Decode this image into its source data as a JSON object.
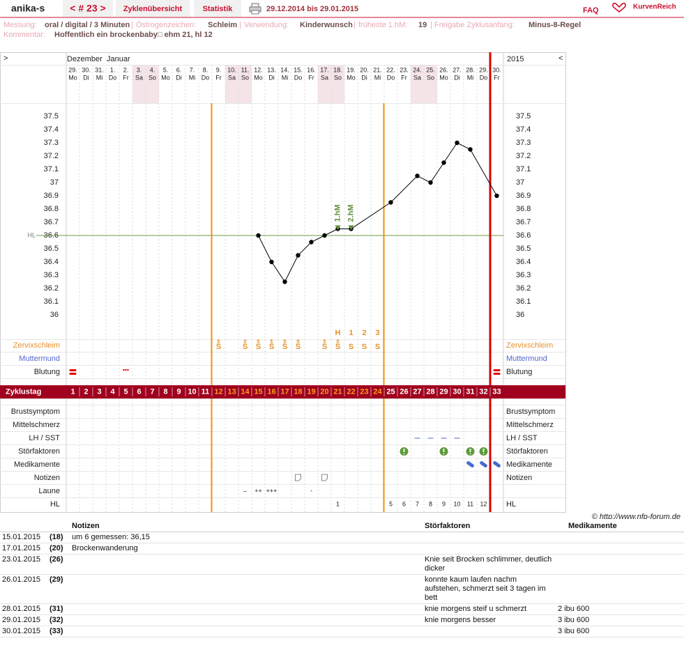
{
  "header": {
    "user": "anika-s",
    "cycle": "< # 23 >",
    "tabs": [
      "Zyklenübersicht",
      "Statistik"
    ],
    "period": "29.12.2014 bis 29.01.2015",
    "faq": "FAQ",
    "logo": "KurvenReich"
  },
  "info": {
    "separator": "|",
    "items": [
      {
        "label": "Messung:",
        "value": "oral / digital / 3 Minuten"
      },
      {
        "label": "Östrogenzeichen:",
        "value": "Schleim"
      },
      {
        "label": "Verwendung:",
        "value": "Kinderwunsch"
      },
      {
        "label": "früheste 1.hM:",
        "value": "19"
      },
      {
        "label": "Freigabe Zyklusanfang:",
        "value": "Minus-8-Regel"
      }
    ],
    "comment_label": "Kommentar:",
    "comment": "Hoffentlich ein brockenbaby□ ehm 21, hl 12"
  },
  "chart_data": {
    "type": "line",
    "nav_left": ">",
    "nav_right": "<",
    "months": [
      "Dezember",
      "Januar"
    ],
    "year": "2015",
    "dates": [
      "29.",
      "30.",
      "31.",
      "1.",
      "2.",
      "3.",
      "4.",
      "5.",
      "6.",
      "7.",
      "8.",
      "9.",
      "10.",
      "11.",
      "12.",
      "13.",
      "14.",
      "15.",
      "16.",
      "17.",
      "18.",
      "19.",
      "20.",
      "21.",
      "22.",
      "23.",
      "24.",
      "25.",
      "26.",
      "27.",
      "28.",
      "29.",
      "30."
    ],
    "weekdays": [
      "Mo",
      "Di",
      "Mi",
      "Do",
      "Fr",
      "Sa",
      "So",
      "Mo",
      "Di",
      "Mi",
      "Do",
      "Fr",
      "Sa",
      "So",
      "Mo",
      "Di",
      "Mi",
      "Do",
      "Fr",
      "Sa",
      "So",
      "Mo",
      "Di",
      "Mi",
      "Do",
      "Fr",
      "Sa",
      "So",
      "Mo",
      "Di",
      "Mi",
      "Do",
      "Fr"
    ],
    "series": [
      {
        "color": "#000000",
        "x": [
          15,
          16,
          17,
          18,
          19,
          20,
          21,
          22,
          25,
          27,
          28,
          29,
          30,
          31,
          33
        ],
        "values": [
          36.6,
          36.4,
          36.25,
          36.45,
          36.55,
          36.6,
          36.65,
          36.65,
          36.85,
          37.05,
          37.0,
          37.15,
          37.3,
          37.25,
          36.9
        ]
      }
    ],
    "xlim": [
      0.5,
      33.5
    ],
    "ylim": [
      35.9,
      37.6
    ],
    "yticks": [
      37.5,
      37.4,
      37.3,
      37.2,
      37.1,
      37,
      36.9,
      36.8,
      36.7,
      36.6,
      36.5,
      36.4,
      36.3,
      36.2,
      36.1,
      36
    ],
    "hl_line": {
      "label": "HL",
      "value": 36.6,
      "color": "#6f9a45"
    },
    "markers": [
      {
        "x": 21,
        "label": "1.hM"
      },
      {
        "x": 22,
        "label": "2.hM"
      }
    ],
    "marker_color": "#5e8e3e"
  },
  "rows": {
    "labels": {
      "zervix": "Zervixschleim",
      "muttermund": "Muttermund",
      "blutung": "Blutung",
      "zyklustag": "Zyklustag",
      "brust": "Brustsymptom",
      "mittel": "Mittelschmerz",
      "lh": "LH / SST",
      "stoer": "Störfaktoren",
      "medi": "Medikamente",
      "notizen": "Notizen",
      "laune": "Laune",
      "hl": "HL"
    },
    "cycle_days": [
      1,
      2,
      3,
      4,
      5,
      6,
      7,
      8,
      9,
      10,
      11,
      12,
      13,
      14,
      15,
      16,
      17,
      18,
      19,
      20,
      21,
      22,
      23,
      24,
      25,
      26,
      27,
      28,
      29,
      30,
      31,
      32,
      33
    ],
    "hm_row": [
      null,
      null,
      null,
      null,
      null,
      null,
      null,
      null,
      null,
      null,
      null,
      null,
      null,
      null,
      null,
      null,
      null,
      null,
      null,
      null,
      "H",
      "1",
      "2",
      "3",
      null,
      null,
      null,
      null,
      null,
      null,
      null,
      null,
      null
    ],
    "zervix_top": [
      null,
      null,
      null,
      null,
      null,
      null,
      null,
      null,
      null,
      null,
      null,
      "±",
      null,
      "±",
      "±",
      "±",
      "±",
      "±",
      null,
      "±",
      "±",
      null,
      null,
      null,
      null,
      null,
      null,
      null,
      null,
      null,
      null,
      null,
      null
    ],
    "zervix": [
      null,
      null,
      null,
      null,
      null,
      null,
      null,
      null,
      null,
      null,
      null,
      "S",
      null,
      "S",
      "S",
      "S",
      "S",
      "S",
      null,
      "S",
      "S",
      "S",
      "S",
      "S",
      null,
      null,
      null,
      null,
      null,
      null,
      null,
      null,
      null
    ],
    "laune": [
      null,
      null,
      null,
      null,
      null,
      null,
      null,
      null,
      null,
      null,
      null,
      null,
      null,
      "–",
      "++",
      "+++",
      null,
      null,
      "-",
      null,
      null,
      null,
      null,
      null,
      null,
      null,
      null,
      null,
      null,
      null,
      null,
      null,
      null
    ],
    "hl": [
      null,
      null,
      null,
      null,
      null,
      null,
      null,
      null,
      null,
      null,
      null,
      null,
      null,
      null,
      null,
      null,
      null,
      null,
      null,
      null,
      1,
      null,
      null,
      null,
      5,
      6,
      7,
      8,
      9,
      10,
      11,
      12,
      null
    ]
  },
  "copyright": "© http://www.nfp-forum.de",
  "table": {
    "headers": [
      "Notizen",
      "Störfaktoren",
      "Medikamente"
    ],
    "rows": [
      [
        "15.01.2015",
        "(18)",
        "um 6 gemessen: 36,15",
        null,
        null
      ],
      [
        "17.01.2015",
        "(20)",
        "Brockenwanderung",
        null,
        null
      ],
      [
        "23.01.2015",
        "(26)",
        null,
        "Knie seit Brocken schlimmer, deutlich dicker",
        null
      ],
      [
        "26.01.2015",
        "(29)",
        null,
        "konnte kaum laufen nachm aufstehen, schmerzt seit 3 tagen im bett",
        null
      ],
      [
        "28.01.2015",
        "(31)",
        null,
        "knie morgens steif u schmerzt",
        "2 ibu 600"
      ],
      [
        "29.01.2015",
        "(32)",
        null,
        "knie morgens besser",
        "3 ibu 600"
      ],
      [
        "30.01.2015",
        "(33)",
        null,
        null,
        "3 ibu 600"
      ]
    ]
  }
}
